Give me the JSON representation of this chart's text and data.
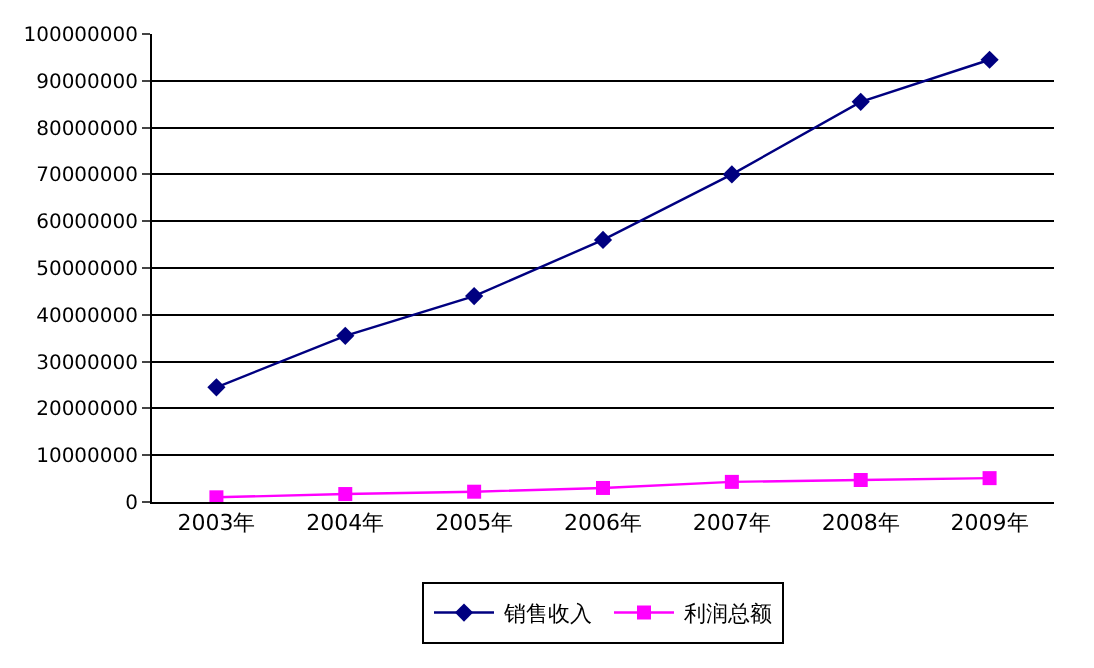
{
  "chart_data": {
    "type": "line",
    "categories": [
      "2003年",
      "2004年",
      "2005年",
      "2006年",
      "2007年",
      "2008年",
      "2009年"
    ],
    "series": [
      {
        "name": "销售收入",
        "color": "#000080",
        "marker": "diamond",
        "values": [
          24500000,
          35500000,
          44000000,
          56000000,
          70000000,
          85500000,
          94500000
        ]
      },
      {
        "name": "利润总额",
        "color": "#ff00ff",
        "marker": "square",
        "values": [
          1000000,
          1700000,
          2200000,
          3000000,
          4300000,
          4700000,
          5100000
        ]
      }
    ],
    "ylim": [
      0,
      100000000
    ],
    "yticks": [
      0,
      10000000,
      20000000,
      30000000,
      40000000,
      50000000,
      60000000,
      70000000,
      80000000,
      90000000,
      100000000
    ],
    "grid": "y",
    "legend": "bottom",
    "line_style": "solid"
  }
}
